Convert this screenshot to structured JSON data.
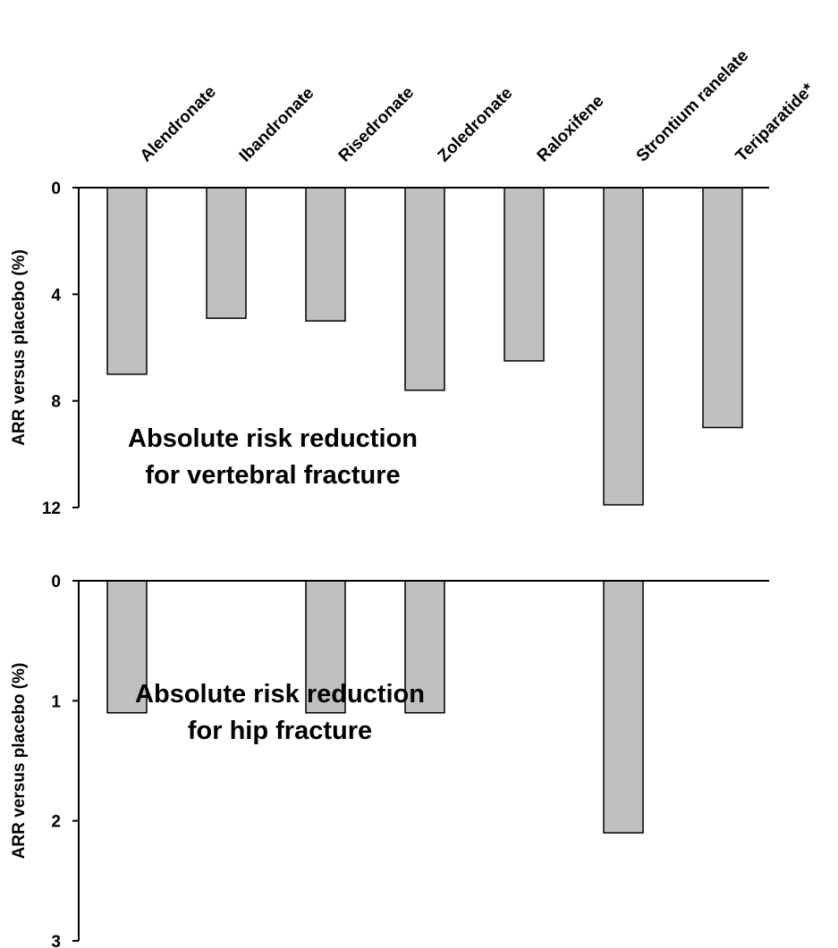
{
  "chart_data": [
    {
      "type": "bar",
      "categories": [
        "Alendronate",
        "Ibandronate",
        "Risedronate",
        "Zoledronate",
        "Raloxifene",
        "Strontium ranelate",
        "Teriparatide*"
      ],
      "values": [
        7.0,
        4.9,
        5.0,
        7.6,
        6.5,
        11.9,
        9.0
      ],
      "title": "",
      "annotation": [
        "Absolute risk reduction",
        "for vertebral fracture"
      ],
      "xlabel": "",
      "ylabel": "ARR versus placebo (%)",
      "ylim": [
        0,
        12
      ],
      "yticks": [
        0,
        4,
        8,
        12
      ],
      "y_inverted": true,
      "grid": false
    },
    {
      "type": "bar",
      "categories": [
        "Alendronate",
        "Ibandronate",
        "Risedronate",
        "Zoledronate",
        "Raloxifene",
        "Strontium ranelate",
        "Teriparatide*"
      ],
      "values": [
        1.1,
        null,
        1.1,
        1.1,
        null,
        2.1,
        null
      ],
      "title": "",
      "annotation": [
        "Absolute risk reduction",
        "for hip fracture"
      ],
      "xlabel": "",
      "ylabel": "ARR versus placebo (%)",
      "ylim": [
        0,
        3
      ],
      "yticks": [
        0,
        1,
        2,
        3
      ],
      "y_inverted": true,
      "grid": false
    }
  ]
}
